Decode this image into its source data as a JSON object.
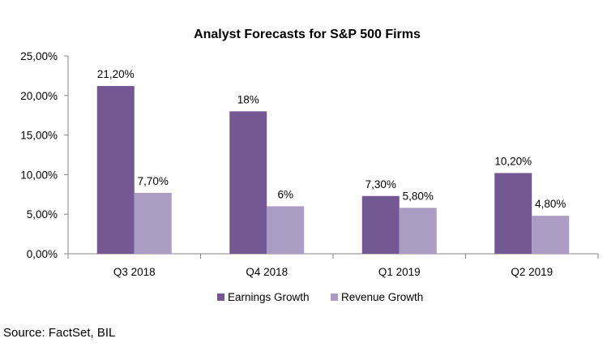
{
  "chart_data": {
    "type": "bar",
    "title": "Analyst Forecasts for S&P 500 Firms",
    "categories": [
      "Q3 2018",
      "Q4 2018",
      "Q1 2019",
      "Q2 2019"
    ],
    "series": [
      {
        "name": "Earnings Growth",
        "values": [
          21.2,
          18,
          7.3,
          10.2
        ],
        "labels": [
          "21,20%",
          "18%",
          "7,30%",
          "10,20%"
        ],
        "color": "#735894"
      },
      {
        "name": "Revenue Growth",
        "values": [
          7.7,
          6,
          5.8,
          4.8
        ],
        "labels": [
          "7,70%",
          "6%",
          "5,80%",
          "4,80%"
        ],
        "color": "#ab9cc3"
      }
    ],
    "ylim": [
      0,
      25
    ],
    "yticks": [
      0,
      5,
      10,
      15,
      20,
      25
    ],
    "ytick_labels": [
      "0,00%",
      "5,00%",
      "10,00%",
      "15,00%",
      "20,00%",
      "25,00%"
    ],
    "grid": false,
    "legend": "bottom"
  },
  "source": "Source: FactSet, BIL"
}
